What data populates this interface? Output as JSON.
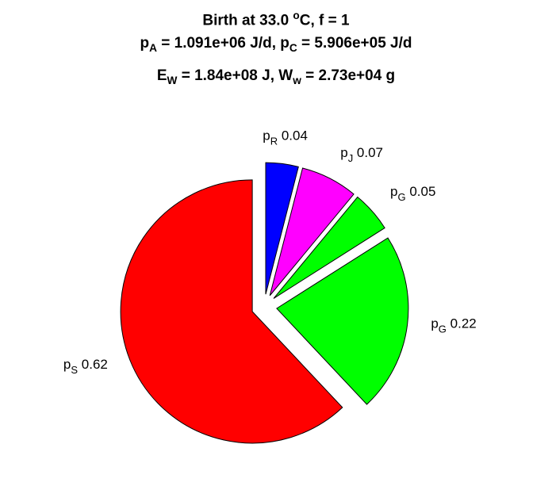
{
  "chart_data": {
    "type": "pie",
    "title": {
      "line1": {
        "prefix": "Birth at 33.0 ",
        "sup": "o",
        "suffix": "C, f = 1"
      },
      "line2": [
        {
          "main": "p",
          "sub": "A",
          "rest": " = 1.091e+06 J/d, "
        },
        {
          "main": "p",
          "sub": "C",
          "rest": " = 5.906e+05 J/d"
        }
      ],
      "line3": [
        {
          "main": "E",
          "sub": "W",
          "rest": " = 1.84e+08 J, "
        },
        {
          "main": "W",
          "sub": "w",
          "rest": " = 2.73e+04 g"
        }
      ]
    },
    "slices": [
      {
        "name": "p",
        "sub": "R",
        "value": 0.04,
        "label": "0.04",
        "color": "#0000ff"
      },
      {
        "name": "p",
        "sub": "J",
        "value": 0.07,
        "label": "0.07",
        "color": "#ff00ff"
      },
      {
        "name": "p",
        "sub": "G",
        "value": 0.05,
        "label": "0.05",
        "color": "#00ff00"
      },
      {
        "name": "p",
        "sub": "G",
        "value": 0.22,
        "label": "0.22",
        "color": "#00ff00"
      },
      {
        "name": "p",
        "sub": "S",
        "value": 0.62,
        "label": "0.62",
        "color": "#ff0000"
      }
    ],
    "start_angle_deg": 90,
    "direction": "clockwise",
    "exploded": true
  }
}
